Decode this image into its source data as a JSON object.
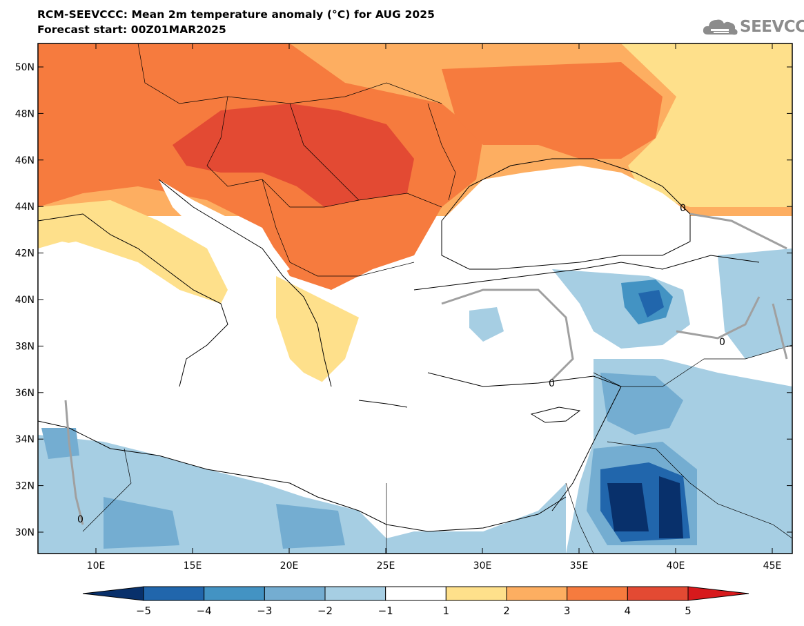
{
  "header": {
    "title": "RCM-SEEVCCC: Mean 2m temperature anomaly (°C) for AUG 2025",
    "subtitle": "Forecast start: 00Z01MAR2025"
  },
  "logo": {
    "text": "SEEVCCC",
    "icon": "cloud-icon"
  },
  "map": {
    "lat_labels": [
      "50N",
      "48N",
      "46N",
      "44N",
      "42N",
      "40N",
      "38N",
      "36N",
      "34N",
      "32N",
      "30N"
    ],
    "lon_labels": [
      "10E",
      "15E",
      "20E",
      "25E",
      "30E",
      "35E",
      "40E",
      "45E"
    ],
    "contour_labels": [
      "0",
      "0",
      "0",
      "0"
    ]
  },
  "colorbar": {
    "ticks": [
      "−5",
      "−4",
      "−3",
      "−2",
      "−1",
      "1",
      "2",
      "3",
      "4",
      "5"
    ],
    "colors": [
      "#08306b",
      "#2166ac",
      "#4393c3",
      "#74add1",
      "#a6cee3",
      "#ffffff",
      "#fee08b",
      "#fdae61",
      "#f67b3e",
      "#e34a33",
      "#d7191c"
    ]
  }
}
